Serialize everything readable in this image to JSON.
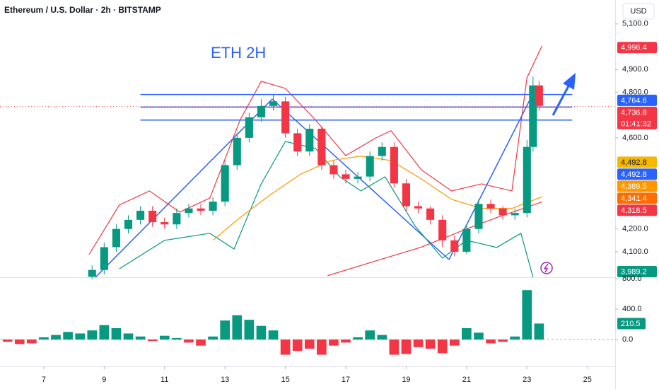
{
  "chart_data": [
    {
      "type": "candlestick",
      "title": "Ethereum / U.S. Dollar · 2h · BITSTAMP",
      "unit": "USD",
      "annotation": "ETH 2H",
      "x": [
        8.6,
        9.0,
        9.4,
        9.8,
        10.2,
        10.6,
        11.0,
        11.4,
        11.8,
        12.2,
        12.6,
        13.0,
        13.4,
        13.8,
        14.2,
        14.6,
        15.0,
        15.4,
        15.8,
        16.2,
        16.6,
        17.0,
        17.4,
        17.8,
        18.2,
        18.6,
        19.0,
        19.4,
        19.8,
        20.2,
        20.6,
        21.0,
        21.4,
        21.8,
        22.2,
        22.6,
        23.0,
        23.2,
        23.4
      ],
      "open": [
        3990,
        4020,
        4120,
        4200,
        4240,
        4280,
        4230,
        4220,
        4270,
        4290,
        4280,
        4320,
        4480,
        4600,
        4690,
        4740,
        4760,
        4620,
        4540,
        4640,
        4480,
        4440,
        4420,
        4430,
        4520,
        4560,
        4400,
        4300,
        4290,
        4240,
        4150,
        4100,
        4200,
        4310,
        4290,
        4260,
        4270,
        4560,
        4830
      ],
      "high": [
        4040,
        4140,
        4220,
        4260,
        4300,
        4300,
        4250,
        4290,
        4310,
        4310,
        4340,
        4500,
        4620,
        4710,
        4770,
        4790,
        4780,
        4640,
        4660,
        4650,
        4500,
        4460,
        4450,
        4540,
        4580,
        4580,
        4420,
        4320,
        4300,
        4260,
        4170,
        4220,
        4330,
        4330,
        4300,
        4290,
        4590,
        4870,
        4850
      ],
      "low": [
        3980,
        4000,
        4100,
        4180,
        4220,
        4210,
        4200,
        4200,
        4250,
        4260,
        4260,
        4300,
        4460,
        4580,
        4670,
        4720,
        4600,
        4520,
        4520,
        4460,
        4420,
        4400,
        4400,
        4410,
        4500,
        4380,
        4280,
        4270,
        4220,
        4120,
        4080,
        4090,
        4180,
        4270,
        4240,
        4240,
        4250,
        4540,
        4720
      ],
      "close": [
        4020,
        4120,
        4200,
        4240,
        4280,
        4230,
        4220,
        4270,
        4290,
        4280,
        4320,
        4480,
        4600,
        4690,
        4740,
        4760,
        4620,
        4540,
        4640,
        4480,
        4440,
        4420,
        4430,
        4520,
        4560,
        4400,
        4300,
        4290,
        4240,
        4150,
        4100,
        4200,
        4310,
        4290,
        4260,
        4270,
        4560,
        4830,
        4740
      ],
      "up_color": "#089981",
      "down_color": "#f23645",
      "xlim": [
        5.55,
        25.92
      ],
      "xticks": [
        7,
        9,
        11,
        13,
        15,
        17,
        19,
        21,
        23,
        25
      ],
      "ylim": [
        3988,
        5205
      ],
      "yticks": [
        {
          "value": 5100,
          "label": "5,100.0"
        },
        {
          "value": 4900,
          "label": "4,900.0"
        },
        {
          "value": 4800,
          "label": "4,800.0"
        },
        {
          "value": 4600,
          "label": "4,600.0"
        },
        {
          "value": 4200,
          "label": "4,200.0"
        },
        {
          "value": 4100,
          "label": "4,100.0"
        }
      ],
      "overlays": [
        {
          "color": "#f23645",
          "x": [
            8.5,
            9.5,
            10.5,
            11.5,
            12.5,
            13.5,
            14.2,
            15,
            16,
            17,
            18,
            18.5,
            19.5,
            20.5,
            21.5,
            22.5,
            23,
            23.5
          ],
          "values": [
            4088,
            4305,
            4367,
            4274,
            4336,
            4678,
            4848,
            4817,
            4678,
            4522,
            4600,
            4631,
            4460,
            4367,
            4398,
            4367,
            4864,
            5004
          ]
        },
        {
          "color": "#089981",
          "x": [
            9.5,
            11,
            12.5,
            13.3,
            14.2,
            15,
            16,
            16.8,
            17.5,
            18.3,
            19.3,
            20.2,
            21,
            22,
            22.8,
            23.2
          ],
          "values": [
            4025,
            4150,
            4181,
            4112,
            4398,
            4584,
            4553,
            4429,
            4367,
            4429,
            4212,
            4072,
            4150,
            4119,
            4181,
            3988
          ]
        },
        {
          "color": "#ff9800",
          "x": [
            12.6,
            13.5,
            14.5,
            15.5,
            16.5,
            17.5,
            18.5,
            19.5,
            20.5,
            21.5,
            22.5,
            23.5
          ],
          "values": [
            4150,
            4250,
            4350,
            4440,
            4500,
            4520,
            4500,
            4420,
            4330,
            4290,
            4290,
            4341.4
          ]
        },
        {
          "color": "#f23645",
          "x": [
            16.4,
            18,
            19.5,
            21,
            22,
            23.5
          ],
          "values": [
            3995,
            4060,
            4120,
            4200,
            4250,
            4318.5
          ]
        }
      ],
      "levels": [
        4790,
        4735,
        4678
      ],
      "level_x": [
        10.2,
        24.5
      ],
      "level_color": "#2962ff",
      "price_labels": [
        {
          "value": 4996.4,
          "label": "4,996.4",
          "color": "#f23645"
        },
        {
          "value": 4764.6,
          "label": "4,764.6",
          "color": "#2962ff"
        },
        {
          "value": 4736.8,
          "label": "4,736.8",
          "color": "#f23645"
        },
        {
          "value": 4492.8,
          "label": "4,492.8",
          "color": "#f5b700"
        },
        {
          "value": 4492.8,
          "label": "4,492.8",
          "color": "#2962ff"
        },
        {
          "value": 4389.5,
          "label": "4,389.5",
          "color": "#ff9800"
        },
        {
          "value": 4341.4,
          "label": "4,341.4",
          "color": "#ff6d00"
        },
        {
          "value": 4318.5,
          "label": "4,318.5",
          "color": "#f23645"
        },
        {
          "value": 3989.2,
          "label": "3,989.2",
          "color": "#089981"
        }
      ],
      "countdown": "01:41:32"
    },
    {
      "type": "bar",
      "x": [
        5.8,
        6.2,
        6.6,
        7.0,
        7.4,
        7.8,
        8.2,
        8.6,
        9.0,
        9.4,
        9.8,
        10.2,
        10.6,
        11.0,
        11.4,
        11.8,
        12.2,
        12.6,
        13.0,
        13.4,
        13.8,
        14.2,
        14.6,
        15.0,
        15.4,
        15.8,
        16.2,
        16.6,
        17.0,
        17.4,
        17.8,
        18.2,
        18.6,
        19.0,
        19.4,
        19.8,
        20.2,
        20.6,
        21.0,
        21.4,
        21.8,
        22.2,
        22.6,
        23.0,
        23.4
      ],
      "values": [
        -30,
        -60,
        -50,
        30,
        60,
        100,
        80,
        120,
        190,
        150,
        80,
        40,
        -20,
        50,
        20,
        -40,
        -80,
        40,
        250,
        320,
        260,
        180,
        120,
        -200,
        -150,
        -120,
        -200,
        -80,
        -40,
        30,
        120,
        60,
        -200,
        -190,
        -100,
        -120,
        -180,
        -80,
        150,
        90,
        -50,
        -30,
        40,
        650,
        210.5
      ],
      "up_color": "#089981",
      "down_color": "#f23645",
      "ylim": [
        -325,
        810
      ],
      "yticks": [
        {
          "value": 800,
          "label": "800.0"
        },
        {
          "value": 400,
          "label": "400.0"
        },
        {
          "value": 0,
          "label": "0.0"
        }
      ],
      "last_label": {
        "value": 210.5,
        "label": "210.5",
        "color": "#089981"
      }
    }
  ]
}
